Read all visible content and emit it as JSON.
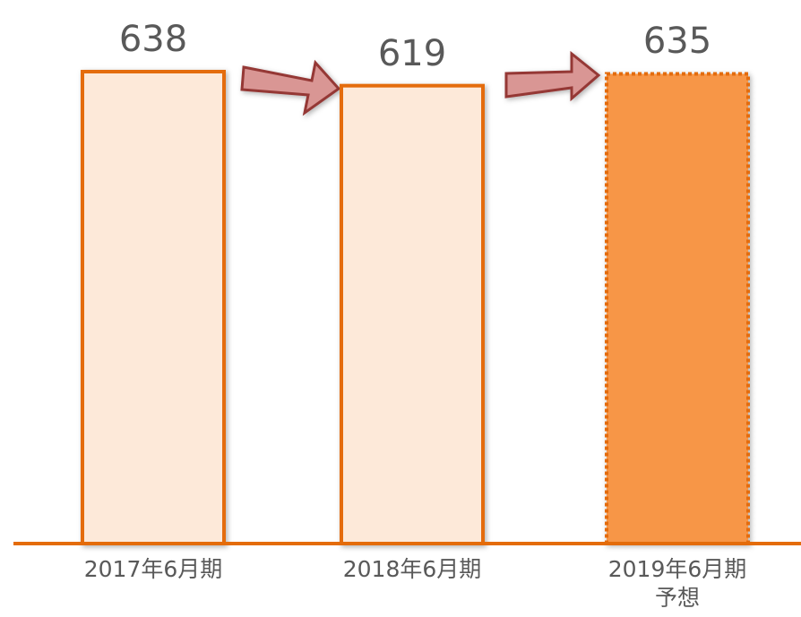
{
  "chart_data": {
    "type": "bar",
    "categories": [
      "2017年6月期",
      "2018年6月期",
      "2019年6月期\n予想"
    ],
    "values": [
      638,
      619,
      635
    ],
    "colors": [
      "#fde9d9",
      "#fde9d9",
      "#f79646"
    ],
    "edge_color": "#e46c0a",
    "dashed": [
      false,
      false,
      true
    ]
  }
}
